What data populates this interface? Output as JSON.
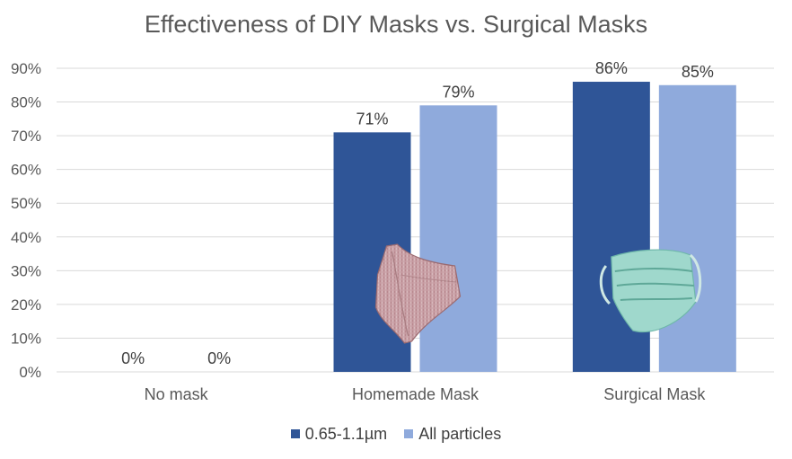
{
  "chart_data": {
    "type": "bar",
    "title": "Effectiveness of DIY Masks vs. Surgical Masks",
    "categories": [
      "No mask",
      "Homemade Mask",
      "Surgical Mask"
    ],
    "series": [
      {
        "name": "0.65-1.1µm",
        "values": [
          0,
          71,
          86
        ],
        "labels": [
          "0%",
          "71%",
          "86%"
        ],
        "color": "#2f5597"
      },
      {
        "name": "All particles",
        "values": [
          0,
          79,
          85
        ],
        "labels": [
          "0%",
          "79%",
          "85%"
        ],
        "color": "#8faadc"
      }
    ],
    "ylim": [
      0,
      90
    ],
    "yticks": [
      "0%",
      "10%",
      "20%",
      "30%",
      "40%",
      "50%",
      "60%",
      "70%",
      "80%",
      "90%"
    ],
    "grid": true,
    "legend_position": "bottom",
    "images": [
      {
        "category": "Homemade Mask",
        "icon": "cloth-mask-icon"
      },
      {
        "category": "Surgical Mask",
        "icon": "surgical-mask-icon"
      }
    ]
  }
}
